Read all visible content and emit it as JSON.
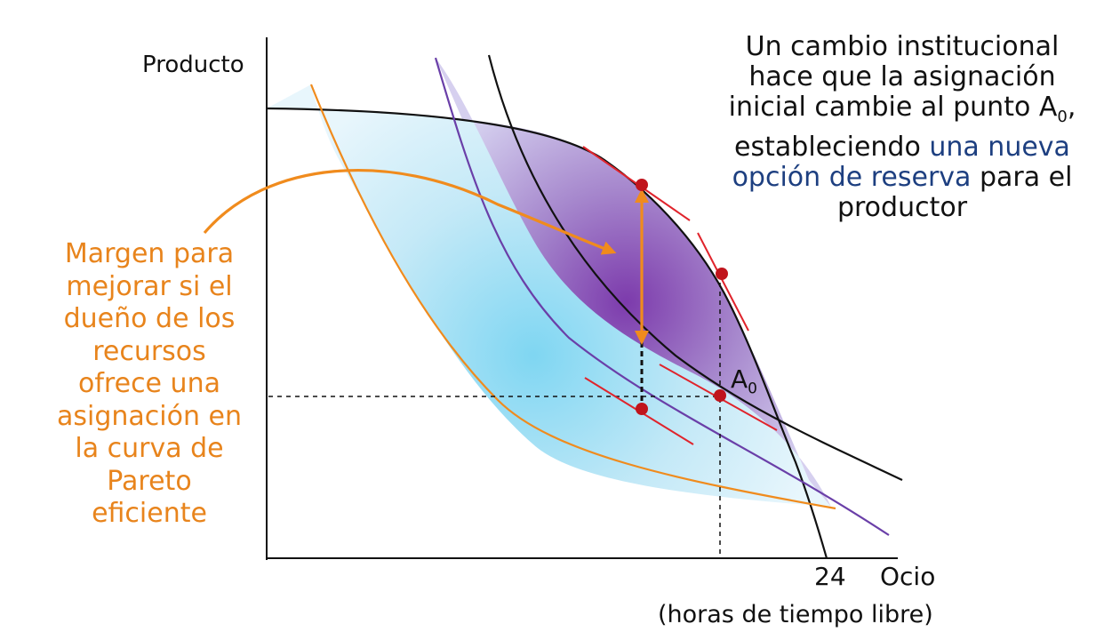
{
  "axes": {
    "y_label": "Producto",
    "x_label": "Ocio",
    "x_tick": "24",
    "x_sublabel": "(horas de tiempo libre)"
  },
  "point_label": {
    "main": "A",
    "sub": "0"
  },
  "note": {
    "line1": "Un cambio institucional",
    "line2": "hace que la asignación",
    "line3_a": "inicial cambie al punto A",
    "line3_sub": "0",
    "line3_b": ",",
    "line4_a": "estableciendo ",
    "line4_hl": "una nueva",
    "line5_hl": "opción de reserva",
    "line5_b": " para el",
    "line6": "productor"
  },
  "margin_note": [
    "Margen para",
    "mejorar si el",
    "dueño de los",
    "recursos",
    "ofrece una",
    "asignación en",
    "la curva de",
    "Pareto",
    "eficiente"
  ],
  "colors": {
    "frontier": "#111111",
    "orange": "#f08b1d",
    "purple": "#6a3fa8",
    "tangent": "#e0242c",
    "point": "#c0141c",
    "text_blue": "#1d3f80",
    "light_region": "#bfe7f5",
    "dark_region": "#7a3fb0"
  }
}
